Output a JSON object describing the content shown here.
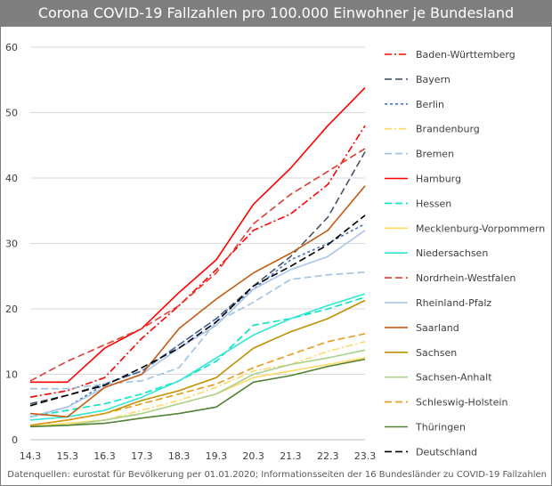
{
  "chart_data": {
    "type": "line",
    "title": "Corona COVID-19 Fallzahlen pro 100.000 Einwohner je Bundesland",
    "xlabel": "",
    "ylabel": "",
    "categories": [
      "14.3",
      "15.3",
      "16.3",
      "17.3",
      "18.3",
      "19.3",
      "20.3",
      "21.3",
      "22.3",
      "23.3"
    ],
    "ylim": [
      0,
      60
    ],
    "yticks": [
      0,
      10,
      20,
      30,
      40,
      50,
      60
    ],
    "grid": true,
    "legend_position": "right",
    "series": [
      {
        "name": "Baden-Württemberg",
        "color": "#ff0000",
        "dash": "dashdot",
        "values": [
          6.5,
          7.5,
          9.5,
          15.5,
          20.5,
          26.0,
          32.0,
          34.5,
          39.0,
          48.0
        ]
      },
      {
        "name": "Bayern",
        "color": "#44546a",
        "dash": "longdash",
        "values": [
          5.5,
          6.8,
          8.5,
          10.5,
          14.5,
          18.5,
          23.5,
          28.0,
          34.0,
          44.0
        ]
      },
      {
        "name": "Berlin",
        "color": "#4472c4",
        "dash": "shortdash",
        "values": [
          3.5,
          5.0,
          8.5,
          10.5,
          14.5,
          18.5,
          23.0,
          27.5,
          30.0,
          33.0
        ]
      },
      {
        "name": "Brandenburg",
        "color": "#ffd966",
        "dash": "dashdot",
        "values": [
          2.0,
          2.5,
          3.0,
          4.5,
          6.0,
          8.0,
          10.5,
          11.5,
          13.5,
          15.0
        ]
      },
      {
        "name": "Bremen",
        "color": "#9dc3e6",
        "dash": "longdash",
        "values": [
          7.8,
          7.8,
          8.5,
          9.0,
          11.0,
          18.0,
          21.0,
          24.5,
          25.2,
          25.6
        ]
      },
      {
        "name": "Hamburg",
        "color": "#ff0000",
        "dash": "solid",
        "values": [
          8.8,
          8.8,
          14.0,
          17.0,
          22.5,
          27.5,
          36.0,
          41.5,
          48.0,
          53.8
        ]
      },
      {
        "name": "Hessen",
        "color": "#00e6c3",
        "dash": "longdash",
        "values": [
          3.5,
          4.5,
          5.5,
          7.0,
          9.0,
          12.0,
          17.5,
          18.5,
          20.0,
          21.8
        ]
      },
      {
        "name": "Mecklenburg-Vorpommern",
        "color": "#ffd966",
        "dash": "solid",
        "values": [
          2.0,
          2.5,
          3.0,
          4.0,
          5.5,
          7.0,
          9.5,
          10.5,
          11.5,
          12.5
        ]
      },
      {
        "name": "Niedersachsen",
        "color": "#33e6d6",
        "dash": "solid",
        "values": [
          3.0,
          3.5,
          4.5,
          6.5,
          9.0,
          12.5,
          16.0,
          18.5,
          20.5,
          22.3
        ]
      },
      {
        "name": "Nordrhein-Westfalen",
        "color": "#e03c31",
        "dash": "longdash",
        "values": [
          9.0,
          12.0,
          14.5,
          17.0,
          20.5,
          25.5,
          33.0,
          37.5,
          41.0,
          44.5
        ]
      },
      {
        "name": "Rheinland-Pfalz",
        "color": "#a9c4eb",
        "dash": "solid",
        "values": [
          3.5,
          5.0,
          8.0,
          10.0,
          14.0,
          17.5,
          23.0,
          26.0,
          28.0,
          32.0
        ]
      },
      {
        "name": "Saarland",
        "color": "#c55a11",
        "dash": "solid",
        "values": [
          4.0,
          3.5,
          8.0,
          10.0,
          17.0,
          21.5,
          25.5,
          28.5,
          32.0,
          38.8
        ]
      },
      {
        "name": "Sachsen",
        "color": "#bf9000",
        "dash": "solid",
        "values": [
          2.2,
          3.0,
          4.0,
          6.0,
          7.5,
          9.5,
          14.0,
          16.5,
          18.5,
          21.3
        ]
      },
      {
        "name": "Sachsen-Anhalt",
        "color": "#a9d18e",
        "dash": "solid",
        "values": [
          2.0,
          2.2,
          3.0,
          4.0,
          5.5,
          7.0,
          10.0,
          11.5,
          12.5,
          13.7
        ]
      },
      {
        "name": "Schleswig-Holstein",
        "color": "#e89a1a",
        "dash": "longdash",
        "values": [
          2.2,
          3.0,
          4.0,
          5.5,
          7.0,
          8.5,
          11.0,
          13.0,
          15.0,
          16.2
        ]
      },
      {
        "name": "Thüringen",
        "color": "#548235",
        "dash": "solid",
        "values": [
          2.0,
          2.2,
          2.5,
          3.3,
          4.0,
          5.0,
          8.8,
          9.8,
          11.2,
          12.3
        ]
      },
      {
        "name": "Deutschland",
        "color": "#000000",
        "dash": "longdash",
        "values": [
          5.2,
          6.8,
          8.3,
          11.0,
          14.0,
          18.0,
          23.5,
          26.5,
          29.8,
          34.3
        ]
      }
    ]
  },
  "footer": {
    "source": "Datenquellen: eurostat für Bevölkerung per 01.01.2020; Informationsseiten der 16 Bundesländer zu COVID-19 Fallzahlen"
  }
}
